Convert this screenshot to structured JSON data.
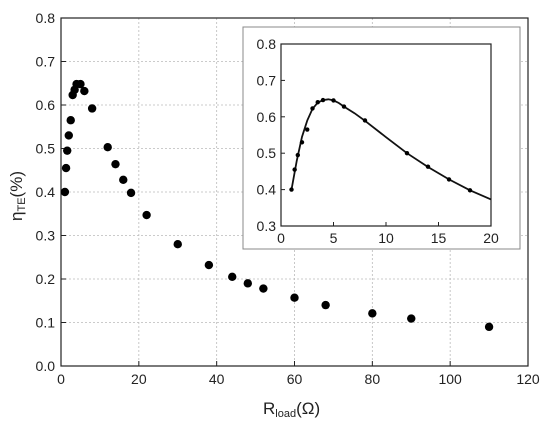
{
  "chart_data": [
    {
      "type": "scatter",
      "xlabel": {
        "main": "R",
        "sub": "load",
        "tail": "(Ω)"
      },
      "ylabel": {
        "main": "η",
        "sub": "TE",
        "tail": "(%)"
      },
      "xlim": [
        0,
        120
      ],
      "ylim": [
        0.0,
        0.8
      ],
      "xticks": [
        0,
        20,
        40,
        60,
        80,
        100,
        120
      ],
      "yticks": [
        0.0,
        0.1,
        0.2,
        0.3,
        0.4,
        0.5,
        0.6,
        0.7,
        0.8
      ],
      "xtick_labels": [
        "0",
        "20",
        "40",
        "60",
        "80",
        "100",
        "120"
      ],
      "ytick_labels": [
        "0.0",
        "0.1",
        "0.2",
        "0.3",
        "0.4",
        "0.5",
        "0.6",
        "0.7",
        "0.8"
      ],
      "grid": true,
      "x": [
        1,
        1.3,
        1.6,
        2,
        2.5,
        3,
        3.5,
        4,
        5,
        6,
        8,
        12,
        14,
        16,
        18,
        22,
        30,
        38,
        44,
        48,
        52,
        60,
        68,
        80,
        90,
        110
      ],
      "y": [
        0.4,
        0.455,
        0.495,
        0.53,
        0.565,
        0.623,
        0.635,
        0.648,
        0.648,
        0.632,
        0.592,
        0.503,
        0.464,
        0.428,
        0.398,
        0.347,
        0.28,
        0.232,
        0.205,
        0.19,
        0.178,
        0.157,
        0.14,
        0.121,
        0.109,
        0.09
      ]
    },
    {
      "type": "line",
      "xlim": [
        0,
        20
      ],
      "ylim": [
        0.3,
        0.8
      ],
      "xticks": [
        0,
        5,
        10,
        15,
        20
      ],
      "yticks": [
        0.3,
        0.4,
        0.5,
        0.6,
        0.7,
        0.8
      ],
      "xtick_labels": [
        "0",
        "5",
        "10",
        "15",
        "20"
      ],
      "ytick_labels": [
        "0.3",
        "0.4",
        "0.5",
        "0.6",
        "0.7",
        "0.8"
      ],
      "grid": false,
      "curve_x": [
        1,
        1.5,
        2,
        2.5,
        3,
        3.5,
        4,
        4.5,
        5,
        5.5,
        6,
        7,
        8,
        10,
        12,
        14,
        16,
        18,
        20
      ],
      "curve_y": [
        0.4,
        0.48,
        0.545,
        0.59,
        0.622,
        0.639,
        0.646,
        0.648,
        0.645,
        0.638,
        0.628,
        0.61,
        0.589,
        0.544,
        0.5,
        0.462,
        0.428,
        0.398,
        0.373
      ],
      "points_x": [
        1,
        1.3,
        1.6,
        2,
        2.5,
        3,
        3.5,
        4,
        5,
        6,
        8,
        12,
        14,
        16,
        18
      ],
      "points_y": [
        0.4,
        0.455,
        0.495,
        0.53,
        0.565,
        0.623,
        0.64,
        0.646,
        0.645,
        0.628,
        0.59,
        0.5,
        0.463,
        0.428,
        0.398
      ]
    }
  ]
}
